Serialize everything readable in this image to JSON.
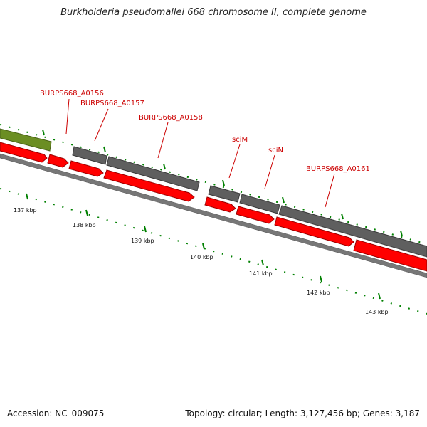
{
  "title": "Burkholderia pseudomallei 668 chromosome II, complete genome",
  "accession_text": "Accession: NC_009075",
  "summary_text": "Topology: circular; Length: 3,127,456 bp; Genes: 3,187",
  "colors": {
    "forward_gene": "#5a5a5a",
    "cds": "#ff0000",
    "other_feature": "#6b8e23",
    "backbone": "#777777",
    "tick": "#008000",
    "label": "#cc0000"
  },
  "gene_labels": [
    {
      "text": "BURPS668_A0156"
    },
    {
      "text": "BURPS668_A0157"
    },
    {
      "text": "BURPS668_A0158"
    },
    {
      "text": "sciM"
    },
    {
      "text": "sciN"
    },
    {
      "text": "BURPS668_A0161"
    }
  ],
  "scale_labels": [
    {
      "text": "137 kbp"
    },
    {
      "text": "138 kbp"
    },
    {
      "text": "139 kbp"
    },
    {
      "text": "140 kbp"
    },
    {
      "text": "141 kbp"
    },
    {
      "text": "142 kbp"
    },
    {
      "text": "143 kbp"
    }
  ]
}
